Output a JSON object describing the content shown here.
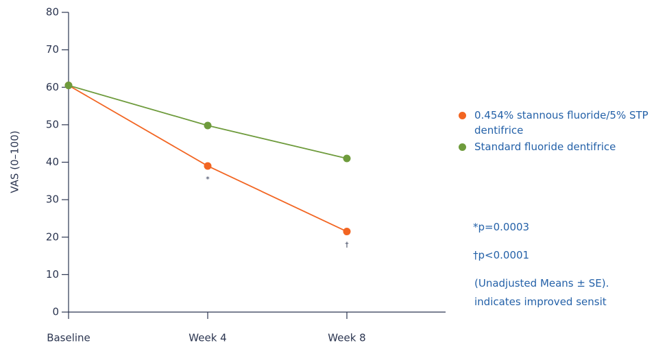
{
  "chart_data": {
    "type": "line",
    "y_label": "VAS (0–100)",
    "categories": [
      "Baseline",
      "Week 4",
      "Week 8"
    ],
    "series": [
      {
        "name": "0.454% stannous fluoride/5% STP dentifrice",
        "color": "#f26522",
        "values": [
          60.5,
          39,
          21.5
        ],
        "point_labels": [
          null,
          "*",
          "†"
        ]
      },
      {
        "name": "Standard fluoride dentifrice",
        "color": "#6e9b3c",
        "values": [
          60.5,
          49.8,
          41
        ]
      }
    ],
    "ylim": [
      0,
      80
    ],
    "yticks": [
      0,
      10,
      20,
      30,
      40,
      50,
      60,
      70,
      80
    ],
    "notes": [
      "*p=0.0003",
      "†p<0.0001",
      "(Unadjusted Means ± SE).",
      "indicates improved sensit"
    ]
  }
}
